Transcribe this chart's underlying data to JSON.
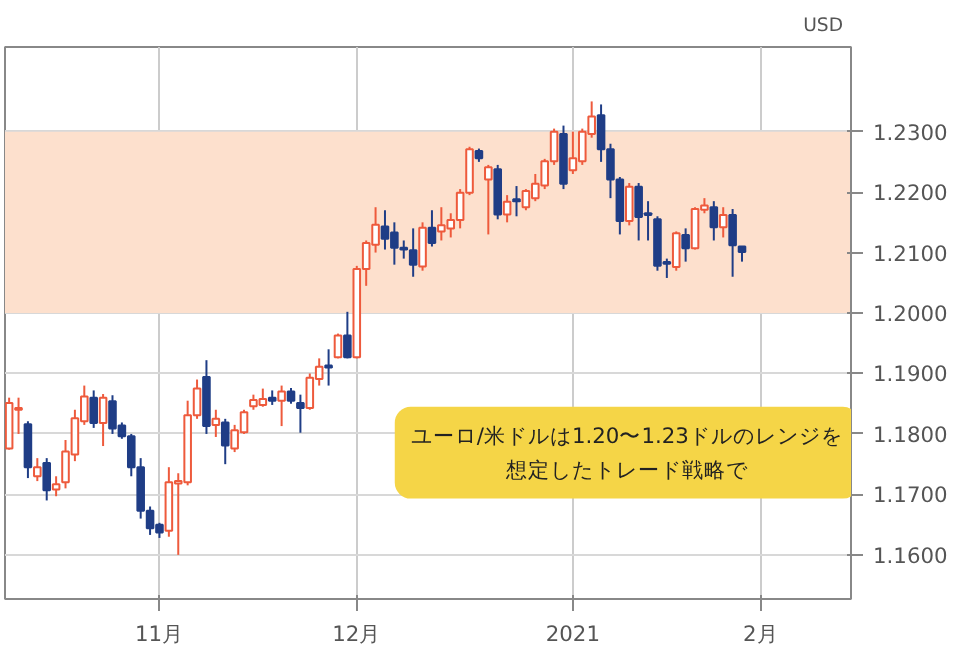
{
  "chart_data": {
    "type": "candlestick",
    "categories": [
      null,
      null,
      null,
      null,
      null,
      null,
      null,
      null,
      null,
      null,
      null,
      null,
      null,
      null,
      null,
      null,
      "11月",
      null,
      null,
      null,
      null,
      null,
      null,
      null,
      null,
      null,
      null,
      null,
      null,
      null,
      null,
      null,
      null,
      null,
      null,
      null,
      null,
      "12月",
      null,
      null,
      null,
      null,
      null,
      null,
      null,
      null,
      null,
      null,
      null,
      null,
      null,
      null,
      null,
      null,
      null,
      null,
      null,
      null,
      null,
      null,
      "2021",
      null,
      null,
      null,
      null,
      null,
      null,
      null,
      null,
      null,
      null,
      null,
      null,
      null,
      null,
      null,
      null,
      null,
      null,
      null,
      "2月"
    ],
    "ohlc": [
      [
        1.1776,
        1.186,
        1.1774,
        1.1851
      ],
      [
        1.184,
        1.186,
        1.18,
        1.1843
      ],
      [
        1.1816,
        1.1821,
        1.1727,
        1.1745
      ],
      [
        1.173,
        1.176,
        1.1722,
        1.1745
      ],
      [
        1.1752,
        1.176,
        1.169,
        1.1707
      ],
      [
        1.1708,
        1.173,
        1.1697,
        1.1717
      ],
      [
        1.172,
        1.179,
        1.171,
        1.1771
      ],
      [
        1.1766,
        1.184,
        1.1755,
        1.1826
      ],
      [
        1.1821,
        1.188,
        1.1815,
        1.1862
      ],
      [
        1.186,
        1.1872,
        1.181,
        1.1818
      ],
      [
        1.1818,
        1.1866,
        1.178,
        1.186
      ],
      [
        1.1854,
        1.1864,
        1.18,
        1.1809
      ],
      [
        1.1814,
        1.1819,
        1.1792,
        1.1796
      ],
      [
        1.1796,
        1.18,
        1.173,
        1.1745
      ],
      [
        1.1745,
        1.176,
        1.166,
        1.1673
      ],
      [
        1.1673,
        1.168,
        1.1633,
        1.1644
      ],
      [
        1.165,
        1.1653,
        1.1628,
        1.1637
      ],
      [
        1.164,
        1.1745,
        1.163,
        1.172
      ],
      [
        1.1718,
        1.1735,
        1.16,
        1.1722
      ],
      [
        1.172,
        1.1855,
        1.1715,
        1.1831
      ],
      [
        1.1831,
        1.189,
        1.1825,
        1.1875
      ],
      [
        1.1894,
        1.1922,
        1.18,
        1.1813
      ],
      [
        1.1815,
        1.184,
        1.1795,
        1.1825
      ],
      [
        1.1819,
        1.1825,
        1.175,
        1.1781
      ],
      [
        1.1776,
        1.1815,
        1.177,
        1.1806
      ],
      [
        1.1803,
        1.184,
        1.18,
        1.1836
      ],
      [
        1.1846,
        1.1865,
        1.184,
        1.1856
      ],
      [
        1.1848,
        1.1875,
        1.1845,
        1.1858
      ],
      [
        1.186,
        1.1872,
        1.1848,
        1.1855
      ],
      [
        1.1855,
        1.188,
        1.1813,
        1.187
      ],
      [
        1.187,
        1.1876,
        1.185,
        1.1855
      ],
      [
        1.1851,
        1.1865,
        1.1802,
        1.1843
      ],
      [
        1.1843,
        1.19,
        1.184,
        1.1893
      ],
      [
        1.1891,
        1.1925,
        1.188,
        1.1911
      ],
      [
        1.1913,
        1.194,
        1.188,
        1.191
      ],
      [
        1.1927,
        1.1966,
        1.1925,
        1.1963
      ],
      [
        1.1963,
        1.2002,
        1.1925,
        1.1927
      ],
      [
        1.1927,
        1.2078,
        1.1925,
        1.2073
      ],
      [
        1.2073,
        1.212,
        1.2045,
        1.2116
      ],
      [
        1.2113,
        1.2175,
        1.21,
        1.2146
      ],
      [
        1.2143,
        1.217,
        1.2105,
        1.2123
      ],
      [
        1.2133,
        1.215,
        1.208,
        1.2108
      ],
      [
        1.2108,
        1.212,
        1.209,
        1.2105
      ],
      [
        1.2104,
        1.214,
        1.206,
        1.208
      ],
      [
        1.2077,
        1.215,
        1.207,
        1.2141
      ],
      [
        1.2141,
        1.217,
        1.211,
        1.2116
      ],
      [
        1.2135,
        1.2175,
        1.212,
        1.2145
      ],
      [
        1.214,
        1.2165,
        1.2125,
        1.2154
      ],
      [
        1.2154,
        1.2205,
        1.214,
        1.2199
      ],
      [
        1.2199,
        1.2275,
        1.2195,
        1.2271
      ],
      [
        1.2268,
        1.2272,
        1.225,
        1.2256
      ],
      [
        1.2221,
        1.2245,
        1.213,
        1.2241
      ],
      [
        1.2238,
        1.2245,
        1.2155,
        1.2163
      ],
      [
        1.2163,
        1.2195,
        1.215,
        1.2184
      ],
      [
        1.2188,
        1.221,
        1.216,
        1.2185
      ],
      [
        1.2175,
        1.2205,
        1.217,
        1.2202
      ],
      [
        1.219,
        1.223,
        1.2185,
        1.2214
      ],
      [
        1.2211,
        1.2255,
        1.2205,
        1.2251
      ],
      [
        1.2251,
        1.2305,
        1.2245,
        1.23
      ],
      [
        1.2296,
        1.231,
        1.2205,
        1.2214
      ],
      [
        1.2236,
        1.23,
        1.223,
        1.2256
      ],
      [
        1.2251,
        1.2305,
        1.2245,
        1.23
      ],
      [
        1.2296,
        1.235,
        1.229,
        1.2325
      ],
      [
        1.2327,
        1.2345,
        1.225,
        1.2271
      ],
      [
        1.2271,
        1.228,
        1.219,
        1.2221
      ],
      [
        1.2221,
        1.2225,
        1.213,
        1.2152
      ],
      [
        1.2152,
        1.2215,
        1.2145,
        1.2209
      ],
      [
        1.2209,
        1.2215,
        1.212,
        1.2159
      ],
      [
        1.2165,
        1.2185,
        1.212,
        1.2162
      ],
      [
        1.2155,
        1.216,
        1.207,
        1.2078
      ],
      [
        1.2084,
        1.209,
        1.2058,
        1.2082
      ],
      [
        1.2076,
        1.2135,
        1.207,
        1.2132
      ],
      [
        1.2129,
        1.214,
        1.2085,
        1.2107
      ],
      [
        1.2107,
        1.2175,
        1.2105,
        1.2172
      ],
      [
        1.2171,
        1.219,
        1.2165,
        1.2178
      ],
      [
        1.2175,
        1.2185,
        1.212,
        1.2142
      ],
      [
        1.2142,
        1.2175,
        1.2125,
        1.2162
      ],
      [
        1.2162,
        1.2172,
        1.206,
        1.2112
      ],
      [
        1.211,
        1.211,
        1.2085,
        1.2101
      ],
      null,
      null
    ],
    "colors": [
      "#ee5a3c",
      "#ee5a3c",
      "#1f3d86",
      "#ee5a3c",
      "#1f3d86",
      "#ee5a3c",
      "#ee5a3c",
      "#ee5a3c",
      "#ee5a3c",
      "#1f3d86",
      "#ee5a3c",
      "#1f3d86",
      "#1f3d86",
      "#1f3d86",
      "#1f3d86",
      "#1f3d86",
      "#1f3d86",
      "#ee5a3c",
      "#ee5a3c",
      "#ee5a3c",
      "#ee5a3c",
      "#1f3d86",
      "#ee5a3c",
      "#1f3d86",
      "#ee5a3c",
      "#ee5a3c",
      "#ee5a3c",
      "#ee5a3c",
      "#1f3d86",
      "#ee5a3c",
      "#1f3d86",
      "#1f3d86",
      "#ee5a3c",
      "#ee5a3c",
      "#1f3d86",
      "#ee5a3c",
      "#1f3d86",
      "#ee5a3c",
      "#ee5a3c",
      "#ee5a3c",
      "#1f3d86",
      "#1f3d86",
      "#1f3d86",
      "#1f3d86",
      "#ee5a3c",
      "#1f3d86",
      "#ee5a3c",
      "#ee5a3c",
      "#ee5a3c",
      "#ee5a3c",
      "#1f3d86",
      "#ee5a3c",
      "#1f3d86",
      "#ee5a3c",
      "#1f3d86",
      "#ee5a3c",
      "#ee5a3c",
      "#ee5a3c",
      "#ee5a3c",
      "#1f3d86",
      "#ee5a3c",
      "#ee5a3c",
      "#ee5a3c",
      "#1f3d86",
      "#1f3d86",
      "#1f3d86",
      "#ee5a3c",
      "#1f3d86",
      "#1f3d86",
      "#1f3d86",
      "#1f3d86",
      "#ee5a3c",
      "#1f3d86",
      "#ee5a3c",
      "#ee5a3c",
      "#1f3d86",
      "#ee5a3c",
      "#1f3d86",
      "#1f3d86",
      null,
      null
    ],
    "ylim": [
      1.1527,
      1.244
    ],
    "yticks": [
      {
        "value": 1.16,
        "label": "1.1600"
      },
      {
        "value": 1.17,
        "label": "1.1700"
      },
      {
        "value": 1.18,
        "label": "1.1800"
      },
      {
        "value": 1.19,
        "label": "1.1900"
      },
      {
        "value": 1.2,
        "label": "1.2000"
      },
      {
        "value": 1.21,
        "label": "1.2100"
      },
      {
        "value": 1.22,
        "label": "1.2200"
      },
      {
        "value": 1.23,
        "label": "1.2300"
      }
    ],
    "ylabel": "USD",
    "grid": true,
    "bands": [
      {
        "axis": "y",
        "from": 1.2,
        "to": 1.23,
        "color": "#fde0cd"
      }
    ],
    "annotations": [
      "ユーロ/米ドルは1.20〜1.23ドルのレンジを想定したトレード戦略で"
    ]
  }
}
